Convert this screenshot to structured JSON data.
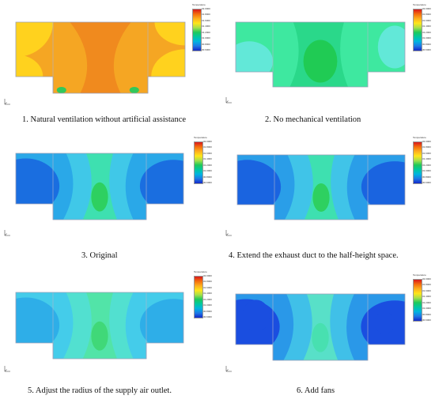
{
  "figure": {
    "legend_title": "Temperature",
    "legend_ticks": [
      "32.0000",
      "31.8000",
      "31.6000",
      "31.4000",
      "31.2000",
      "31.0000",
      "30.8000",
      "30.6000"
    ],
    "colors": {
      "outline": "#9aa0b8",
      "divider": "#b0b6cc",
      "scale": [
        "#d7191c",
        "#f46d0d",
        "#fdae1e",
        "#ffe51a",
        "#a6e04a",
        "#1ec85a",
        "#00c8a0",
        "#00b4e0",
        "#1e78e6",
        "#1428c8"
      ]
    },
    "panels": [
      {
        "caption": "1. Natural ventilation without artificial assistance",
        "scheme": "natural",
        "colors": {
          "base": "#f5a623",
          "edge": "#ffd21e",
          "core": "#f08a1e",
          "spot": "#32c85a"
        }
      },
      {
        "caption": "2. No mechanical ventilation",
        "scheme": "nomech",
        "colors": {
          "base": "#3ee8a0",
          "edge": "#62e8d8",
          "core": "#2ad88a",
          "spot": "#1ec846"
        }
      },
      {
        "caption": "3. Original",
        "scheme": "blue",
        "colors": {
          "base": "#2aa8e8",
          "edge": "#1a6ee0",
          "mid": "#40c8e8",
          "core": "#3ee0b0",
          "spot": "#2ed060"
        }
      },
      {
        "caption": "4. Extend the exhaust duct to the half-height space.",
        "scheme": "blue",
        "colors": {
          "base": "#2a9ee8",
          "edge": "#1a64e0",
          "mid": "#40c4e8",
          "core": "#3ee0b0",
          "spot": "#2ed060"
        }
      },
      {
        "caption": "5. Adjust the radius of the supply air outlet.",
        "scheme": "cyan",
        "colors": {
          "base": "#44ccea",
          "edge": "#2eaee8",
          "mid": "#52e0d0",
          "core": "#52e4a8",
          "spot": "#40d878"
        }
      },
      {
        "caption": "6. Add fans",
        "scheme": "fans",
        "colors": {
          "base": "#2a98e8",
          "edge": "#1a4ee0",
          "mid": "#40c0e8",
          "core": "#58e0c8",
          "spot": "#48e0b0"
        }
      }
    ]
  }
}
